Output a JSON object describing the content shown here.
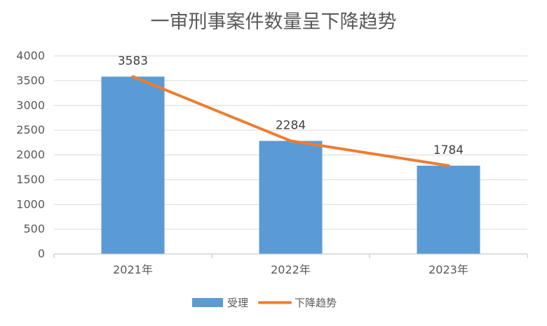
{
  "chart_data": {
    "type": "bar",
    "title": "一审刑事案件数量呈下降趋势",
    "categories": [
      "2021年",
      "2022年",
      "2023年"
    ],
    "series": [
      {
        "name": "受理",
        "kind": "bar",
        "values": [
          3583,
          2284,
          1784
        ],
        "color": "#5b9bd5"
      },
      {
        "name": "下降趋势",
        "kind": "line",
        "values": [
          3583,
          2284,
          1784
        ],
        "color": "#ed7d31"
      }
    ],
    "data_labels": [
      "3583",
      "2284",
      "1784"
    ],
    "ylim": [
      0,
      4000
    ],
    "yticks": [
      "0",
      "500",
      "1000",
      "1500",
      "2000",
      "2500",
      "3000",
      "3500",
      "4000"
    ],
    "xlabel": "",
    "ylabel": "",
    "grid": true,
    "legend_position": "bottom"
  }
}
